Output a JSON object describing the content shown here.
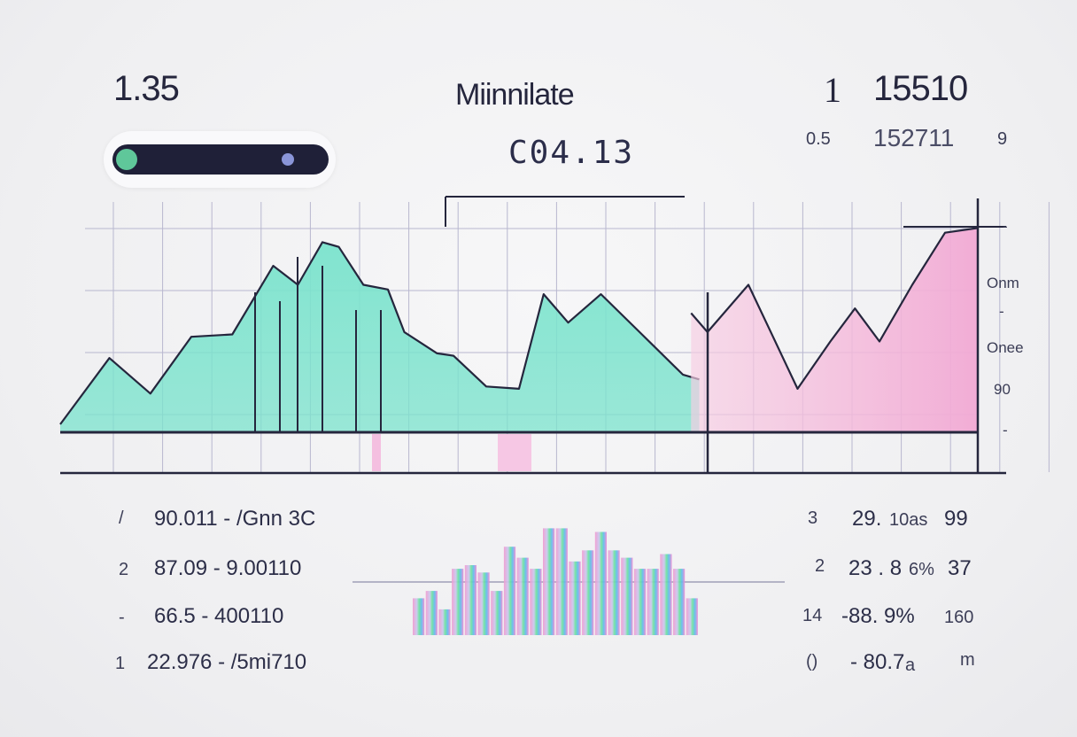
{
  "header": {
    "left_value": "1.35",
    "title": "Miinnilate",
    "subtitle": "C04.13",
    "right_value_a": "1",
    "right_value_b": "15510",
    "right_sub_a": "0.5",
    "right_sub_b": "152711",
    "right_sub_c": "9"
  },
  "slider": {
    "value": 0.85
  },
  "axis_labels": [
    "Onm",
    "-",
    "Onee",
    "90",
    "-",
    "-"
  ],
  "left_rows": [
    {
      "n": "/",
      "text": "90.011 - /Gnn 3C"
    },
    {
      "n": "2",
      "text": "87.09 - 9.00110"
    },
    {
      "n": "-",
      "text": "66.5 - 400110"
    },
    {
      "n": "1",
      "text": "22.976 - /5mi710"
    }
  ],
  "right_rows": [
    {
      "n": "3",
      "text": "29.",
      "unit": "10as",
      "end": "99"
    },
    {
      "n": "2",
      "text": "23 . 8",
      "unit": "6%",
      "end": "37"
    },
    {
      "n": "14",
      "text": "-88. 9%",
      "unit": "",
      "end": "160"
    },
    {
      "n": "()",
      "text": "- 80.7",
      "unit": "a",
      "end": "m"
    }
  ],
  "colors": {
    "teal": "#7be3cd",
    "pink": "#f2a9d4",
    "ink": "#25263d",
    "grid": "#b8b7cf"
  },
  "chart_data": [
    {
      "type": "area",
      "title": "",
      "xlabel": "",
      "ylabel": "",
      "grid": true,
      "series": [
        {
          "color": "#7be3cd",
          "x": [
            0,
            6,
            11,
            16,
            21,
            26,
            29,
            32,
            34,
            37,
            40,
            42,
            46,
            48,
            52,
            56,
            59,
            62,
            66,
            71,
            76,
            78
          ],
          "values": [
            3,
            31,
            16,
            40,
            41,
            70,
            62,
            80,
            78,
            62,
            60,
            42,
            33,
            32,
            19,
            18,
            58,
            46,
            58,
            41,
            24,
            22
          ]
        },
        {
          "color": "#f2a9d4",
          "x": [
            77,
            79,
            84,
            87,
            90,
            94,
            97,
            100,
            104,
            108,
            112
          ],
          "values": [
            50,
            42,
            62,
            40,
            18,
            38,
            52,
            38,
            62,
            84,
            86
          ]
        }
      ]
    },
    {
      "type": "bar",
      "title": "",
      "values": [
        20,
        24,
        14,
        36,
        38,
        34,
        24,
        48,
        42,
        36,
        58,
        58,
        40,
        46,
        56,
        46,
        42,
        36,
        36,
        44,
        36,
        20
      ]
    }
  ]
}
